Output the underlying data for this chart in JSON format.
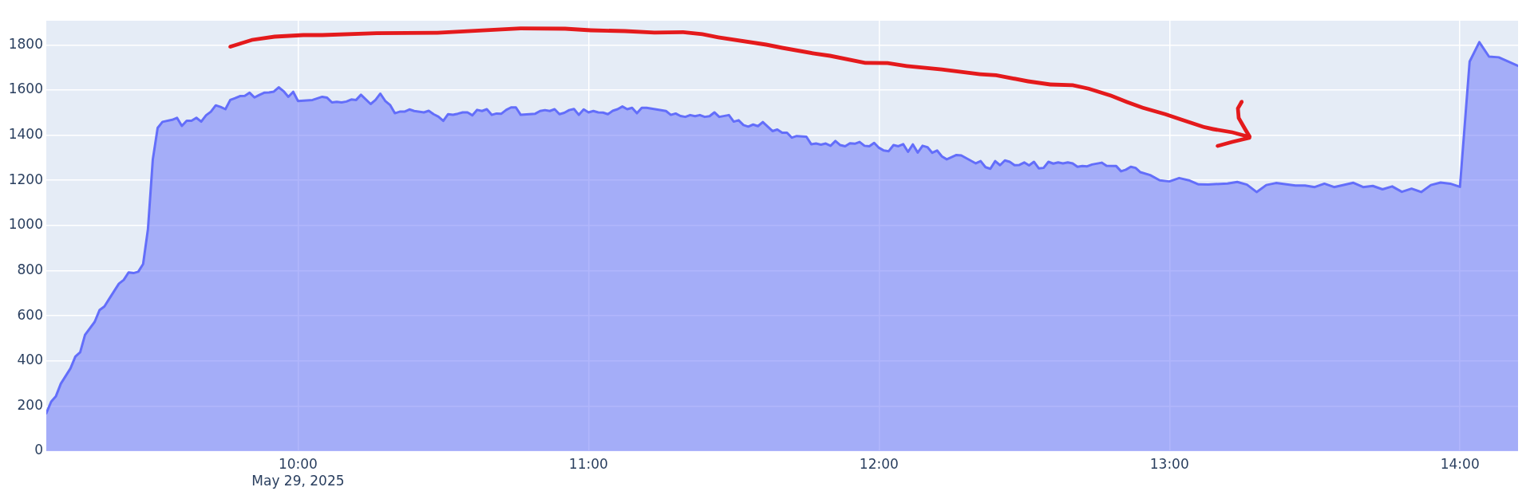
{
  "chart_data": {
    "type": "area",
    "color": "#636efa",
    "marker": "none",
    "grid": true,
    "xlim": [
      "2025-05-29T09:08",
      "2025-05-29T14:12"
    ],
    "xticks": [
      {
        "value": "2025-05-29T10:00",
        "label": "10:00\nMay 29, 2025"
      },
      {
        "value": "2025-05-29T11:00",
        "label": "11:00"
      },
      {
        "value": "2025-05-29T12:00",
        "label": "12:00"
      },
      {
        "value": "2025-05-29T13:00",
        "label": "13:00"
      },
      {
        "value": "2025-05-29T14:00",
        "label": "14:00"
      }
    ],
    "ylim": [
      0,
      1907
    ],
    "yticks": [
      0,
      200,
      400,
      600,
      800,
      1000,
      1200,
      1400,
      1600,
      1800
    ],
    "x": [
      "2025-05-29T09:08",
      "2025-05-29T09:09",
      "2025-05-29T09:10",
      "2025-05-29T09:11",
      "2025-05-29T09:13",
      "2025-05-29T09:14",
      "2025-05-29T09:15",
      "2025-05-29T09:16",
      "2025-05-29T09:18",
      "2025-05-29T09:19",
      "2025-05-29T09:20",
      "2025-05-29T09:21",
      "2025-05-29T09:23",
      "2025-05-29T09:24",
      "2025-05-29T09:25",
      "2025-05-29T09:26",
      "2025-05-29T09:27",
      "2025-05-29T09:28",
      "2025-05-29T09:29",
      "2025-05-29T09:30",
      "2025-05-29T09:31",
      "2025-05-29T09:32",
      "2025-05-29T09:34",
      "2025-05-29T09:35",
      "2025-05-29T09:36",
      "2025-05-29T09:37",
      "2025-05-29T09:38",
      "2025-05-29T09:39",
      "2025-05-29T09:40",
      "2025-05-29T09:41",
      "2025-05-29T09:42",
      "2025-05-29T09:43",
      "2025-05-29T09:44",
      "2025-05-29T09:45",
      "2025-05-29T09:46",
      "2025-05-29T09:47",
      "2025-05-29T09:48",
      "2025-05-29T09:49",
      "2025-05-29T09:50",
      "2025-05-29T09:51",
      "2025-05-29T09:52",
      "2025-05-29T09:53",
      "2025-05-29T09:54",
      "2025-05-29T09:55",
      "2025-05-29T09:56",
      "2025-05-29T09:57",
      "2025-05-29T09:58",
      "2025-05-29T09:59",
      "2025-05-29T10:00",
      "2025-05-29T10:03",
      "2025-05-29T10:05",
      "2025-05-29T10:06",
      "2025-05-29T10:07",
      "2025-05-29T10:08",
      "2025-05-29T10:09",
      "2025-05-29T10:10",
      "2025-05-29T10:11",
      "2025-05-29T10:12",
      "2025-05-29T10:13",
      "2025-05-29T10:15",
      "2025-05-29T10:16",
      "2025-05-29T10:17",
      "2025-05-29T10:18",
      "2025-05-29T10:19",
      "2025-05-29T10:20",
      "2025-05-29T10:21",
      "2025-05-29T10:22",
      "2025-05-29T10:23",
      "2025-05-29T10:24",
      "2025-05-29T10:26",
      "2025-05-29T10:27",
      "2025-05-29T10:28",
      "2025-05-29T10:29",
      "2025-05-29T10:30",
      "2025-05-29T10:31",
      "2025-05-29T10:32",
      "2025-05-29T10:33",
      "2025-05-29T10:34",
      "2025-05-29T10:35",
      "2025-05-29T10:36",
      "2025-05-29T10:37",
      "2025-05-29T10:38",
      "2025-05-29T10:39",
      "2025-05-29T10:40",
      "2025-05-29T10:41",
      "2025-05-29T10:42",
      "2025-05-29T10:43",
      "2025-05-29T10:44",
      "2025-05-29T10:45",
      "2025-05-29T10:46",
      "2025-05-29T10:49",
      "2025-05-29T10:50",
      "2025-05-29T10:51",
      "2025-05-29T10:52",
      "2025-05-29T10:53",
      "2025-05-29T10:54",
      "2025-05-29T10:55",
      "2025-05-29T10:56",
      "2025-05-29T10:57",
      "2025-05-29T10:58",
      "2025-05-29T10:59",
      "2025-05-29T11:00",
      "2025-05-29T11:01",
      "2025-05-29T11:02",
      "2025-05-29T11:03",
      "2025-05-29T11:04",
      "2025-05-29T11:05",
      "2025-05-29T11:06",
      "2025-05-29T11:07",
      "2025-05-29T11:08",
      "2025-05-29T11:09",
      "2025-05-29T11:10",
      "2025-05-29T11:11",
      "2025-05-29T11:12",
      "2025-05-29T11:16",
      "2025-05-29T11:17",
      "2025-05-29T11:18",
      "2025-05-29T11:19",
      "2025-05-29T11:20",
      "2025-05-29T11:21",
      "2025-05-29T11:22",
      "2025-05-29T11:23",
      "2025-05-29T11:24",
      "2025-05-29T11:25",
      "2025-05-29T11:26",
      "2025-05-29T11:27",
      "2025-05-29T11:29",
      "2025-05-29T11:30",
      "2025-05-29T11:31",
      "2025-05-29T11:32",
      "2025-05-29T11:33",
      "2025-05-29T11:34",
      "2025-05-29T11:35",
      "2025-05-29T11:36",
      "2025-05-29T11:38",
      "2025-05-29T11:39",
      "2025-05-29T11:40",
      "2025-05-29T11:41",
      "2025-05-29T11:42",
      "2025-05-29T11:43",
      "2025-05-29T11:45",
      "2025-05-29T11:46",
      "2025-05-29T11:47",
      "2025-05-29T11:48",
      "2025-05-29T11:49",
      "2025-05-29T11:50",
      "2025-05-29T11:51",
      "2025-05-29T11:52",
      "2025-05-29T11:53",
      "2025-05-29T11:54",
      "2025-05-29T11:55",
      "2025-05-29T11:56",
      "2025-05-29T11:57",
      "2025-05-29T11:58",
      "2025-05-29T11:59",
      "2025-05-29T12:00",
      "2025-05-29T12:01",
      "2025-05-29T12:02",
      "2025-05-29T12:03",
      "2025-05-29T12:04",
      "2025-05-29T12:05",
      "2025-05-29T12:06",
      "2025-05-29T12:07",
      "2025-05-29T12:08",
      "2025-05-29T12:09",
      "2025-05-29T12:10",
      "2025-05-29T12:11",
      "2025-05-29T12:12",
      "2025-05-29T12:13",
      "2025-05-29T12:14",
      "2025-05-29T12:16",
      "2025-05-29T12:17",
      "2025-05-29T12:20",
      "2025-05-29T12:21",
      "2025-05-29T12:22",
      "2025-05-29T12:23",
      "2025-05-29T12:24",
      "2025-05-29T12:25",
      "2025-05-29T12:26",
      "2025-05-29T12:27",
      "2025-05-29T12:28",
      "2025-05-29T12:29",
      "2025-05-29T12:30",
      "2025-05-29T12:31",
      "2025-05-29T12:32",
      "2025-05-29T12:33",
      "2025-05-29T12:34",
      "2025-05-29T12:35",
      "2025-05-29T12:36",
      "2025-05-29T12:37",
      "2025-05-29T12:38",
      "2025-05-29T12:39",
      "2025-05-29T12:40",
      "2025-05-29T12:41",
      "2025-05-29T12:42",
      "2025-05-29T12:43",
      "2025-05-29T12:44",
      "2025-05-29T12:46",
      "2025-05-29T12:47",
      "2025-05-29T12:49",
      "2025-05-29T12:50",
      "2025-05-29T12:51",
      "2025-05-29T12:52",
      "2025-05-29T12:53",
      "2025-05-29T12:54",
      "2025-05-29T12:56",
      "2025-05-29T12:58",
      "2025-05-29T13:00",
      "2025-05-29T13:02",
      "2025-05-29T13:04",
      "2025-05-29T13:06",
      "2025-05-29T13:08",
      "2025-05-29T13:12",
      "2025-05-29T13:14",
      "2025-05-29T13:16",
      "2025-05-29T13:18",
      "2025-05-29T13:20",
      "2025-05-29T13:22",
      "2025-05-29T13:26",
      "2025-05-29T13:28",
      "2025-05-29T13:30",
      "2025-05-29T13:32",
      "2025-05-29T13:34",
      "2025-05-29T13:38",
      "2025-05-29T13:40",
      "2025-05-29T13:42",
      "2025-05-29T13:44",
      "2025-05-29T13:46",
      "2025-05-29T13:48",
      "2025-05-29T13:50",
      "2025-05-29T13:52",
      "2025-05-29T13:54",
      "2025-05-29T13:56",
      "2025-05-29T13:58",
      "2025-05-29T14:00",
      "2025-05-29T14:02",
      "2025-05-29T14:04",
      "2025-05-29T14:06",
      "2025-05-29T14:08",
      "2025-05-29T14:12"
    ],
    "values": [
      168,
      219,
      244,
      299,
      367,
      419,
      438,
      515,
      573,
      625,
      641,
      675,
      742,
      759,
      792,
      789,
      795,
      829,
      984,
      1292,
      1432,
      1459,
      1468,
      1477,
      1441,
      1464,
      1464,
      1477,
      1460,
      1488,
      1504,
      1532,
      1525,
      1515,
      1556,
      1564,
      1573,
      1574,
      1588,
      1567,
      1578,
      1588,
      1589,
      1593,
      1612,
      1595,
      1570,
      1592,
      1551,
      1556,
      1570,
      1566,
      1545,
      1548,
      1545,
      1549,
      1558,
      1556,
      1579,
      1538,
      1556,
      1584,
      1552,
      1534,
      1497,
      1504,
      1504,
      1514,
      1507,
      1501,
      1508,
      1493,
      1482,
      1463,
      1493,
      1490,
      1495,
      1501,
      1501,
      1488,
      1512,
      1507,
      1515,
      1490,
      1496,
      1495,
      1512,
      1523,
      1523,
      1490,
      1495,
      1507,
      1511,
      1507,
      1515,
      1493,
      1499,
      1511,
      1516,
      1490,
      1514,
      1501,
      1507,
      1501,
      1500,
      1493,
      1508,
      1515,
      1527,
      1515,
      1521,
      1497,
      1521,
      1521,
      1507,
      1490,
      1496,
      1485,
      1481,
      1489,
      1484,
      1489,
      1481,
      1484,
      1501,
      1481,
      1489,
      1460,
      1466,
      1445,
      1438,
      1447,
      1440,
      1458,
      1418,
      1425,
      1411,
      1411,
      1389,
      1396,
      1393,
      1360,
      1363,
      1358,
      1363,
      1353,
      1374,
      1356,
      1351,
      1364,
      1362,
      1370,
      1353,
      1351,
      1366,
      1344,
      1332,
      1329,
      1356,
      1351,
      1360,
      1326,
      1359,
      1323,
      1353,
      1347,
      1322,
      1332,
      1306,
      1293,
      1312,
      1310,
      1275,
      1285,
      1258,
      1251,
      1285,
      1267,
      1288,
      1282,
      1267,
      1268,
      1279,
      1266,
      1282,
      1253,
      1255,
      1282,
      1274,
      1279,
      1275,
      1279,
      1275,
      1260,
      1263,
      1262,
      1270,
      1278,
      1264,
      1263,
      1240,
      1247,
      1260,
      1255,
      1236,
      1223,
      1200,
      1195,
      1210,
      1200,
      1182,
      1181,
      1186,
      1193,
      1181,
      1148,
      1179,
      1188,
      1177,
      1177,
      1170,
      1185,
      1170,
      1189,
      1170,
      1175,
      1160,
      1173,
      1149,
      1163,
      1148,
      1179,
      1190,
      1185,
      1171,
      1726,
      1812,
      1748,
      1745,
      1707
    ]
  }
}
